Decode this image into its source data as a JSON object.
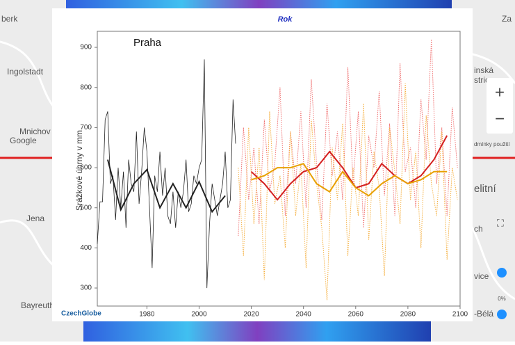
{
  "chart_data": {
    "type": "line",
    "title": "Rok",
    "annotation": "Praha",
    "y_label": "Srážkové úhrny v mm",
    "logo": "CzechGlobe",
    "xlim": [
      1961,
      2100
    ],
    "xticks": [
      1980,
      2000,
      2020,
      2040,
      2060,
      2080,
      2100
    ],
    "ylim": [
      255,
      940
    ],
    "yticks": [
      300,
      400,
      500,
      600,
      700,
      800,
      900
    ],
    "series": [
      {
        "color": "#222222",
        "style": "solid",
        "width": 0.8,
        "x": [
          1961,
          1962,
          1963,
          1964,
          1965,
          1966,
          1967,
          1968,
          1969,
          1970,
          1971,
          1972,
          1973,
          1974,
          1975,
          1976,
          1977,
          1978,
          1979,
          1980,
          1981,
          1982,
          1983,
          1984,
          1985,
          1986,
          1987,
          1988,
          1989,
          1990,
          1991,
          1992,
          1993,
          1994,
          1995,
          1996,
          1997,
          1998,
          1999,
          2000,
          2001,
          2002,
          2003,
          2004,
          2005,
          2006,
          2007,
          2008,
          2009,
          2010,
          2011,
          2012,
          2013,
          2014
        ],
        "values": [
          410,
          515,
          515,
          720,
          740,
          560,
          580,
          470,
          600,
          500,
          590,
          450,
          620,
          560,
          540,
          690,
          510,
          590,
          700,
          640,
          500,
          350,
          580,
          540,
          640,
          530,
          600,
          480,
          460,
          540,
          450,
          540,
          500,
          540,
          620,
          490,
          510,
          580,
          560,
          600,
          620,
          870,
          300,
          460,
          560,
          520,
          480,
          520,
          560,
          640,
          500,
          520,
          770,
          660
        ]
      },
      {
        "color": "#222222",
        "style": "solid",
        "width": 2,
        "x": [
          1965,
          1970,
          1975,
          1980,
          1985,
          1990,
          1995,
          2000,
          2005,
          2010
        ],
        "values": [
          620,
          495,
          560,
          595,
          500,
          560,
          500,
          565,
          490,
          530
        ]
      },
      {
        "color": "#f07070",
        "style": "dotted",
        "width": 1,
        "x": [
          2015,
          2017,
          2019,
          2021,
          2023,
          2025,
          2027,
          2029,
          2031,
          2033,
          2035,
          2037,
          2039,
          2041,
          2043,
          2045,
          2047,
          2049,
          2051,
          2053,
          2055,
          2057,
          2059,
          2061,
          2063,
          2065,
          2067,
          2069,
          2071,
          2073,
          2075,
          2077,
          2079,
          2081,
          2083,
          2085,
          2087,
          2089,
          2091,
          2093,
          2095,
          2097,
          2099
        ],
        "values": [
          430,
          700,
          520,
          650,
          460,
          720,
          540,
          610,
          800,
          480,
          690,
          560,
          740,
          500,
          820,
          610,
          470,
          760,
          580,
          690,
          520,
          850,
          560,
          740,
          450,
          680,
          600,
          790,
          530,
          710,
          480,
          860,
          590,
          650,
          500,
          770,
          620,
          920,
          560,
          700,
          480,
          750,
          600
        ]
      },
      {
        "color": "#f5b040",
        "style": "dotted",
        "width": 1,
        "x": [
          2015,
          2017,
          2019,
          2021,
          2023,
          2025,
          2027,
          2029,
          2031,
          2033,
          2035,
          2037,
          2039,
          2041,
          2043,
          2045,
          2047,
          2049,
          2051,
          2053,
          2055,
          2057,
          2059,
          2061,
          2063,
          2065,
          2067,
          2069,
          2071,
          2073,
          2075,
          2077,
          2079,
          2081,
          2083,
          2085,
          2087,
          2089,
          2091,
          2093,
          2095,
          2097,
          2099
        ],
        "values": [
          600,
          380,
          700,
          460,
          650,
          320,
          740,
          510,
          580,
          400,
          690,
          480,
          610,
          350,
          720,
          560,
          450,
          270,
          650,
          520,
          710,
          380,
          600,
          480,
          760,
          420,
          640,
          550,
          330,
          700,
          590,
          460,
          810,
          520,
          640,
          400,
          730,
          560,
          480,
          690,
          370,
          600,
          520
        ]
      },
      {
        "color": "#d42020",
        "style": "solid",
        "width": 2,
        "x": [
          2020,
          2025,
          2030,
          2035,
          2040,
          2045,
          2050,
          2055,
          2060,
          2065,
          2070,
          2075,
          2080,
          2085,
          2090,
          2095
        ],
        "values": [
          590,
          560,
          520,
          560,
          590,
          600,
          640,
          600,
          550,
          560,
          610,
          580,
          560,
          580,
          620,
          680
        ]
      },
      {
        "color": "#e8a000",
        "style": "solid",
        "width": 2,
        "x": [
          2020,
          2025,
          2030,
          2035,
          2040,
          2045,
          2050,
          2055,
          2060,
          2065,
          2070,
          2075,
          2080,
          2085,
          2090,
          2095
        ],
        "values": [
          570,
          580,
          600,
          600,
          610,
          560,
          540,
          590,
          550,
          530,
          560,
          580,
          560,
          570,
          590,
          590
        ]
      }
    ]
  },
  "map": {
    "labels": [
      "berk",
      "Ingolstadt",
      "Mnichov",
      "Google",
      "Jena",
      "Bayreuth",
      "inská",
      "strica",
      "Za",
      "dmínky použití",
      "elitní",
      "ch",
      "vice",
      "-Bélá",
      "0%"
    ]
  }
}
